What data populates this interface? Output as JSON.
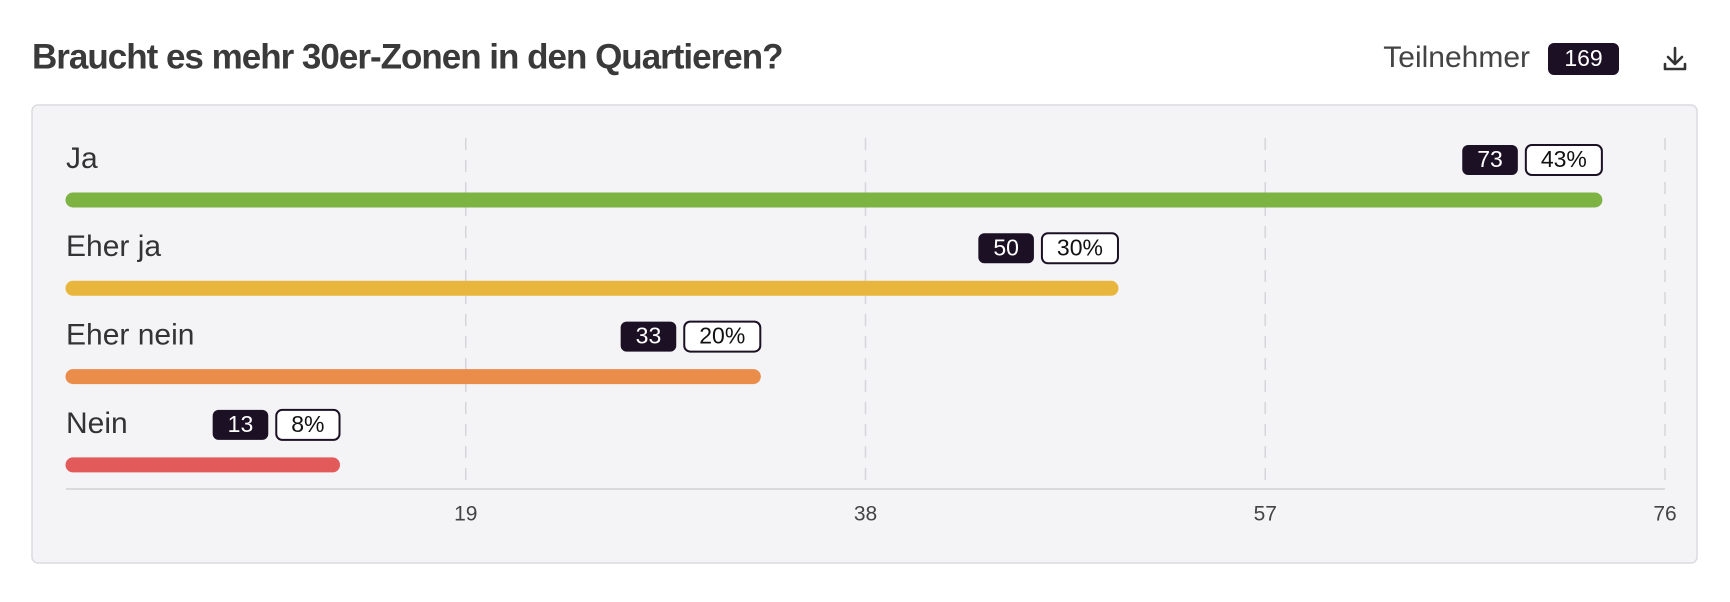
{
  "chart_data": {
    "type": "bar",
    "orientation": "horizontal",
    "title": "Braucht es mehr 30er-Zonen in den Quartieren?",
    "participants_label": "Teilnehmer",
    "participants": 169,
    "categories": [
      "Ja",
      "Eher ja",
      "Eher nein",
      "Nein"
    ],
    "values": [
      73,
      50,
      33,
      13
    ],
    "percentages": [
      43,
      30,
      20,
      8
    ],
    "percentage_labels": [
      "43%",
      "30%",
      "20%",
      "8%"
    ],
    "colors": [
      "#7cb342",
      "#e8b63c",
      "#ea8c4a",
      "#e35a5a"
    ],
    "xlim": [
      0,
      76
    ],
    "xticks": [
      19,
      38,
      57,
      76
    ],
    "grid": true
  }
}
